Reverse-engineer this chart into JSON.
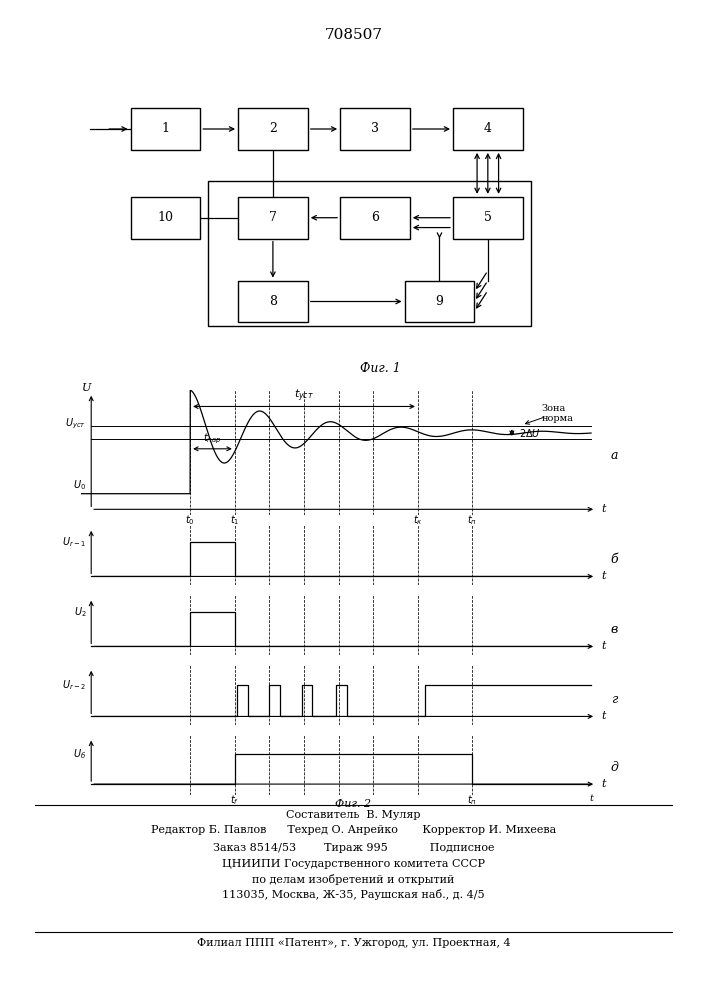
{
  "title": "708507",
  "bg_color": "#ffffff",
  "t0": 2.2,
  "t1": 3.1,
  "tk": 6.8,
  "tn": 7.9,
  "tf": 3.1,
  "tp": 7.9,
  "Uust": 2.3,
  "U0": 0.15,
  "dU": 0.22,
  "footer_line1": "Составитель  В. Муляр",
  "footer_line2": "Редактор Б. Павлов      Техред О. Анрейко       Корректор И. Михеева",
  "footer_line3": "Заказ 8514/53        Тираж 995            Подписное",
  "footer_line4": "ЦНИИПИ Государственного комитета СССР",
  "footer_line5": "по делам изобретений и открытий",
  "footer_line6": "113035, Москва, Ж-35, Раушская наб., д. 4/5",
  "footer_line7": "Филиал ППП «Патент», г. Ужгород, ул. Проектная, 4"
}
